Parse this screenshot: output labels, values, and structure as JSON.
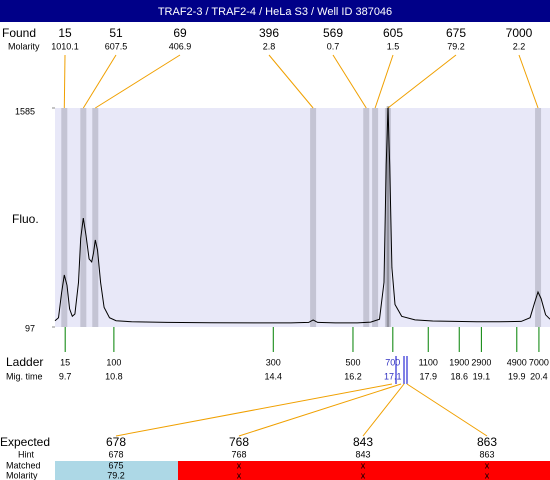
{
  "chart_data": {
    "type": "line",
    "title": "TRAF2-3 / TRAF2-4 / HeLa S3 / Well ID 387046",
    "ylabel": "Fluo.",
    "color": "#000000",
    "xlim": [
      9.47,
      20.65
    ],
    "ylim": [
      97,
      1585
    ],
    "yticks": [
      97,
      1585
    ],
    "x": [
      9.47,
      9.55,
      9.62,
      9.68,
      9.74,
      9.8,
      9.86,
      9.92,
      10.0,
      10.05,
      10.11,
      10.17,
      10.24,
      10.3,
      10.34,
      10.38,
      10.43,
      10.5,
      10.58,
      10.7,
      10.85,
      11.2,
      12,
      13,
      14,
      14.8,
      15.2,
      15.3,
      15.4,
      15.8,
      16.3,
      16.6,
      16.8,
      16.9,
      16.95,
      16.99,
      17.03,
      17.08,
      17.15,
      17.3,
      17.6,
      18,
      18.5,
      19,
      19.5,
      20,
      20.2,
      20.3,
      20.38,
      20.45,
      20.55,
      20.65
    ],
    "values": [
      140,
      160,
      330,
      450,
      380,
      220,
      170,
      185,
      400,
      700,
      837,
      720,
      560,
      539,
      600,
      688,
      620,
      400,
      230,
      160,
      140,
      132,
      128,
      126,
      125,
      125,
      128,
      145,
      128,
      125,
      125,
      130,
      150,
      400,
      1200,
      1585,
      1200,
      500,
      250,
      170,
      145,
      138,
      135,
      133,
      133,
      135,
      160,
      260,
      335,
      290,
      180,
      150
    ],
    "found": {
      "label": "Found",
      "molarity_label": "Molarity",
      "sizes": [
        15,
        51,
        69,
        396,
        569,
        605,
        675,
        7000
      ],
      "molarity": [
        1010.1,
        607.5,
        406.9,
        2.8,
        0.7,
        1.5,
        79.2,
        2.2
      ],
      "times": [
        9.68,
        10.11,
        10.38,
        15.3,
        16.5,
        16.7,
        16.99,
        20.38
      ]
    },
    "ladder": {
      "label": "Ladder",
      "time_label": "Mig. time",
      "sizes": [
        15,
        100,
        300,
        500,
        700,
        1100,
        1900,
        2900,
        4900,
        7000
      ],
      "times": [
        9.7,
        10.8,
        14.4,
        16.2,
        17.1,
        17.9,
        18.6,
        19.1,
        19.9,
        20.4
      ]
    },
    "expected": {
      "label": "Expected",
      "hint_label": "Hint",
      "matched_label": "Matched",
      "molarity_label": "Molarity",
      "sizes": [
        678,
        768,
        843,
        863
      ],
      "hint": [
        678,
        768,
        843,
        863
      ],
      "matched": [
        675,
        "x",
        "x",
        "x"
      ],
      "molarity": [
        79.2,
        "x",
        "x",
        "x"
      ]
    }
  }
}
